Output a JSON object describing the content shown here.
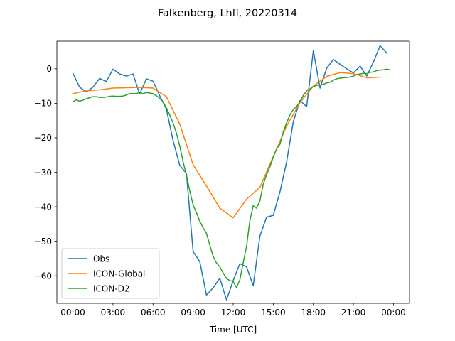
{
  "chart_data": {
    "type": "line",
    "title": "Falkenberg, Lhfl, 20220314",
    "xlabel": "Time [UTC]",
    "ylabel": "",
    "x_unit": "hours UTC",
    "xlim": [
      -1.2,
      25.2
    ],
    "ylim": [
      -68,
      8
    ],
    "x_ticks": [
      0,
      3,
      6,
      9,
      12,
      15,
      18,
      21,
      24
    ],
    "x_tick_labels": [
      "00:00",
      "03:00",
      "06:00",
      "09:00",
      "12:00",
      "15:00",
      "18:00",
      "21:00",
      "00:00"
    ],
    "y_ticks": [
      0,
      -10,
      -20,
      -30,
      -40,
      -50,
      -60
    ],
    "y_tick_labels": [
      "0",
      "−10",
      "−20",
      "−30",
      "−40",
      "−50",
      "−60"
    ],
    "legend_position": "lower-left",
    "grid": false,
    "series": [
      {
        "name": "Obs",
        "color": "#1f77b4",
        "x": [
          0,
          0.5,
          1,
          1.5,
          2,
          2.5,
          3,
          3.5,
          4,
          4.5,
          5,
          5.5,
          6,
          6.5,
          7,
          7.5,
          8,
          8.5,
          9,
          9.5,
          10,
          10.5,
          11,
          11.5,
          12,
          12.5,
          13,
          13.5,
          14,
          14.5,
          15,
          15.5,
          16,
          16.5,
          17,
          17.5,
          18,
          18.5,
          19,
          19.5,
          20,
          20.5,
          21,
          21.5,
          22,
          22.5,
          23,
          23.5
        ],
        "y": [
          -1.3,
          -5.3,
          -6.7,
          -5.3,
          -2.8,
          -3.7,
          -0.1,
          -1.5,
          -2.1,
          -1.5,
          -7.3,
          -2.9,
          -3.6,
          -7.8,
          -11.7,
          -20.8,
          -28.0,
          -30.3,
          -53.0,
          -55.9,
          -65.6,
          -63.5,
          -60.7,
          -67.0,
          -61.4,
          -56.5,
          -57.4,
          -62.9,
          -48.5,
          -43.0,
          -42.5,
          -35.7,
          -27.0,
          -15.3,
          -9.2,
          -11.0,
          5.3,
          -5.6,
          0.2,
          2.7,
          1.3,
          0.0,
          -1.2,
          0.8,
          -2.1,
          2.0,
          6.7,
          4.5
        ]
      },
      {
        "name": "ICON-Global",
        "color": "#ff7f0e",
        "x": [
          0,
          1,
          2,
          3,
          4,
          5,
          6,
          7,
          8,
          9,
          10,
          11,
          12,
          13,
          14,
          15,
          16,
          17,
          18,
          19,
          20,
          21,
          22,
          23
        ],
        "y": [
          -7.2,
          -6.4,
          -6.1,
          -5.6,
          -5.5,
          -5.4,
          -5.6,
          -8.1,
          -16.0,
          -27.8,
          -34.0,
          -40.4,
          -43.2,
          -37.8,
          -34.4,
          -25.4,
          -16.6,
          -9.8,
          -5.0,
          -2.2,
          -1.1,
          -1.4,
          -2.6,
          -2.4
        ]
      },
      {
        "name": "ICON-D2",
        "color": "#2ca02c",
        "x": [
          0,
          0.25,
          0.5,
          0.75,
          1,
          1.25,
          1.5,
          1.75,
          2,
          2.25,
          2.5,
          2.75,
          3,
          3.25,
          3.5,
          3.75,
          4,
          4.25,
          4.5,
          4.75,
          5,
          5.25,
          5.5,
          5.75,
          6,
          6.25,
          6.5,
          6.75,
          7,
          7.25,
          7.5,
          7.75,
          8,
          8.25,
          8.5,
          8.75,
          9,
          9.25,
          9.5,
          9.75,
          10,
          10.25,
          10.5,
          10.75,
          11,
          11.25,
          11.5,
          11.75,
          12,
          12.25,
          12.5,
          12.75,
          13,
          13.25,
          13.5,
          13.75,
          14,
          14.25,
          14.5,
          14.75,
          15,
          15.25,
          15.5,
          15.75,
          16,
          16.25,
          16.5,
          16.75,
          17,
          17.25,
          17.5,
          17.75,
          18,
          18.25,
          18.5,
          18.75,
          19,
          19.25,
          19.5,
          19.75,
          20,
          20.25,
          20.5,
          20.75,
          21,
          21.25,
          21.5,
          21.75,
          22,
          22.25,
          22.5,
          22.75,
          23,
          23.25,
          23.5,
          23.75
        ],
        "y": [
          -9.6,
          -9.0,
          -9.4,
          -9.1,
          -8.7,
          -8.4,
          -8.1,
          -8.1,
          -8.3,
          -8.3,
          -8.2,
          -8.0,
          -7.9,
          -8.0,
          -8.0,
          -7.9,
          -7.6,
          -7.2,
          -7.2,
          -7.2,
          -6.8,
          -7.2,
          -6.9,
          -7.0,
          -7.2,
          -7.8,
          -8.6,
          -9.6,
          -11.3,
          -13.4,
          -15.7,
          -18.6,
          -22.4,
          -26.9,
          -30.8,
          -35.4,
          -39.5,
          -41.7,
          -44.2,
          -46.1,
          -47.7,
          -51.1,
          -54.4,
          -56.3,
          -57.4,
          -59.2,
          -60.8,
          -61.4,
          -61.7,
          -63.4,
          -61.2,
          -56.2,
          -51.5,
          -44.0,
          -39.7,
          -40.4,
          -38.3,
          -33.5,
          -30.7,
          -28.4,
          -25.6,
          -23.2,
          -21.9,
          -18.3,
          -15.7,
          -13.3,
          -11.8,
          -10.9,
          -9.6,
          -7.7,
          -6.4,
          -5.8,
          -5.2,
          -4.8,
          -4.7,
          -4.5,
          -4.1,
          -3.9,
          -3.3,
          -2.9,
          -2.7,
          -2.6,
          -2.5,
          -2.4,
          -2.1,
          -1.7,
          -1.5,
          -1.3,
          -1.4,
          -1.0,
          -0.9,
          -0.5,
          -0.4,
          -0.3,
          -0.1,
          -0.3
        ]
      }
    ]
  }
}
